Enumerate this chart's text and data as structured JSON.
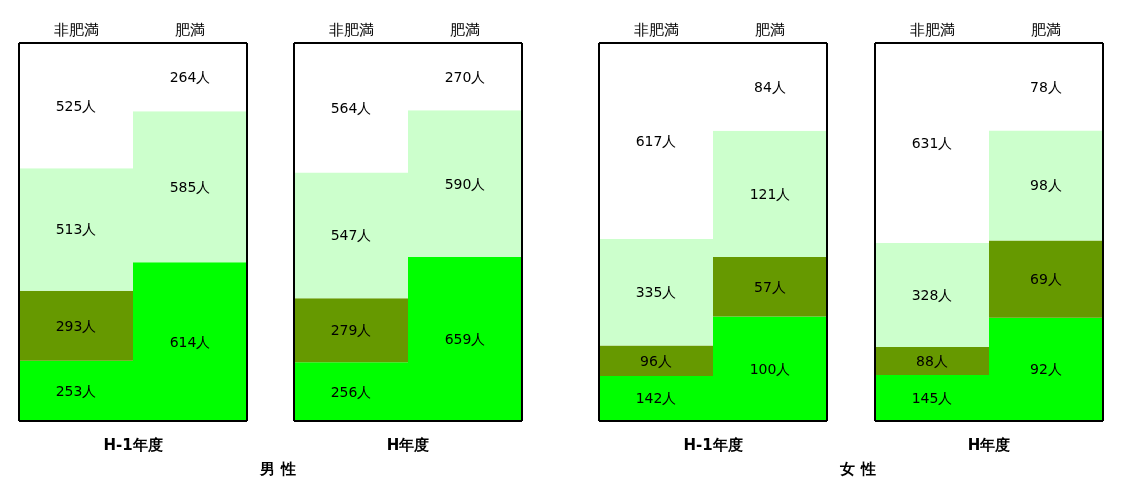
{
  "chart_data": [
    {
      "type": "other",
      "xlabel": "H-1年度",
      "annotations": [
        "男 性"
      ],
      "categories": [
        "非肥満",
        "肥満"
      ],
      "series": [
        {
          "color": "#00ff00",
          "values": [
            253,
            614
          ],
          "value_labels": [
            "253人",
            "614人"
          ]
        },
        {
          "color": "#669900",
          "values": [
            293,
            null
          ],
          "value_labels": [
            "293人",
            null
          ]
        },
        {
          "color": "#ccffcc",
          "values": [
            513,
            585
          ],
          "value_labels": [
            "513人",
            "585人"
          ]
        },
        {
          "color": "#ffffff",
          "values": [
            525,
            264
          ],
          "value_labels": [
            "525人",
            "264人"
          ]
        }
      ]
    },
    {
      "type": "other",
      "xlabel": "H年度",
      "categories": [
        "非肥満",
        "肥満"
      ],
      "series": [
        {
          "color": "#00ff00",
          "values": [
            256,
            659
          ],
          "value_labels": [
            "256人",
            "659人"
          ]
        },
        {
          "color": "#669900",
          "values": [
            279,
            null
          ],
          "value_labels": [
            "279人",
            null
          ]
        },
        {
          "color": "#ccffcc",
          "values": [
            547,
            590
          ],
          "value_labels": [
            "547人",
            "590人"
          ]
        },
        {
          "color": "#ffffff",
          "values": [
            564,
            270
          ],
          "value_labels": [
            "564人",
            "270人"
          ]
        }
      ]
    },
    {
      "type": "other",
      "xlabel": "H-1年度",
      "annotations": [
        "女 性"
      ],
      "categories": [
        "非肥満",
        "肥満"
      ],
      "series": [
        {
          "color": "#00ff00",
          "values": [
            142,
            100
          ],
          "value_labels": [
            "142人",
            "100人"
          ]
        },
        {
          "color": "#669900",
          "values": [
            96,
            57
          ],
          "value_labels": [
            "96人",
            "57人"
          ]
        },
        {
          "color": "#ccffcc",
          "values": [
            335,
            121
          ],
          "value_labels": [
            "335人",
            "121人"
          ]
        },
        {
          "color": "#ffffff",
          "values": [
            617,
            84
          ],
          "value_labels": [
            "617人",
            "84人"
          ]
        }
      ]
    },
    {
      "type": "other",
      "xlabel": "H年度",
      "categories": [
        "非肥満",
        "肥満"
      ],
      "series": [
        {
          "color": "#00ff00",
          "values": [
            145,
            92
          ],
          "value_labels": [
            "145人",
            "92人"
          ]
        },
        {
          "color": "#669900",
          "values": [
            88,
            69
          ],
          "value_labels": [
            "88人",
            "69人"
          ]
        },
        {
          "color": "#ccffcc",
          "values": [
            328,
            98
          ],
          "value_labels": [
            "328人",
            "98人"
          ]
        },
        {
          "color": "#ffffff",
          "values": [
            631,
            78
          ],
          "value_labels": [
            "631人",
            "78人"
          ]
        }
      ]
    }
  ]
}
